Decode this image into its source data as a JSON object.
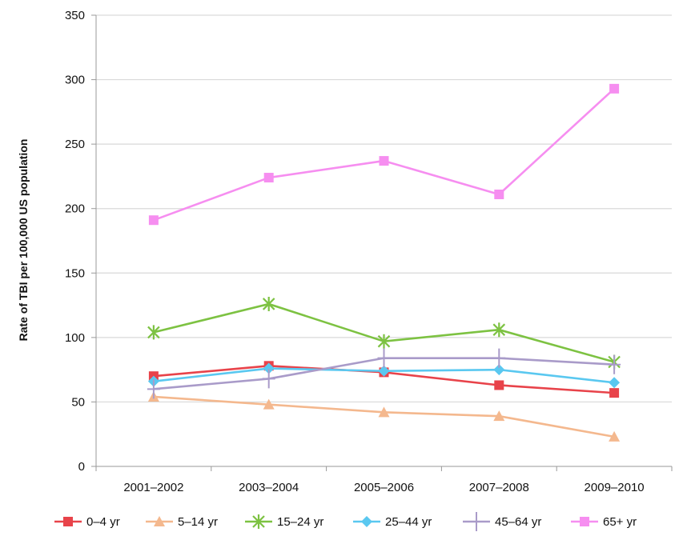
{
  "chart_data": {
    "type": "line",
    "categories": [
      "2001–2002",
      "2003–2004",
      "2005–2006",
      "2007–2008",
      "2009–2010"
    ],
    "ylabel": "Rate of TBI per 100,000 US population",
    "xlabel": "",
    "ylim": [
      0,
      350
    ],
    "yticks": [
      0,
      50,
      100,
      150,
      200,
      250,
      300,
      350
    ],
    "grid": "horizontal",
    "legend_position": "bottom",
    "series": [
      {
        "name": "0–4 yr",
        "color": "#e8434a",
        "marker": "square",
        "values": [
          70,
          78,
          73,
          63,
          57
        ]
      },
      {
        "name": "5–14 yr",
        "color": "#f4b88e",
        "marker": "triangle",
        "values": [
          54,
          48,
          42,
          39,
          23
        ]
      },
      {
        "name": "15–24 yr",
        "color": "#7dc242",
        "marker": "asterisk",
        "values": [
          104,
          126,
          97,
          106,
          81
        ]
      },
      {
        "name": "25–44 yr",
        "color": "#5ac8f0",
        "marker": "diamond",
        "values": [
          66,
          76,
          74,
          75,
          65
        ]
      },
      {
        "name": "45–64 yr",
        "color": "#a99bc9",
        "marker": "plus",
        "values": [
          60,
          68,
          84,
          84,
          79
        ]
      },
      {
        "name": "65+ yr",
        "color": "#f68ef0",
        "marker": "square",
        "values": [
          191,
          224,
          237,
          211,
          293
        ]
      }
    ]
  }
}
